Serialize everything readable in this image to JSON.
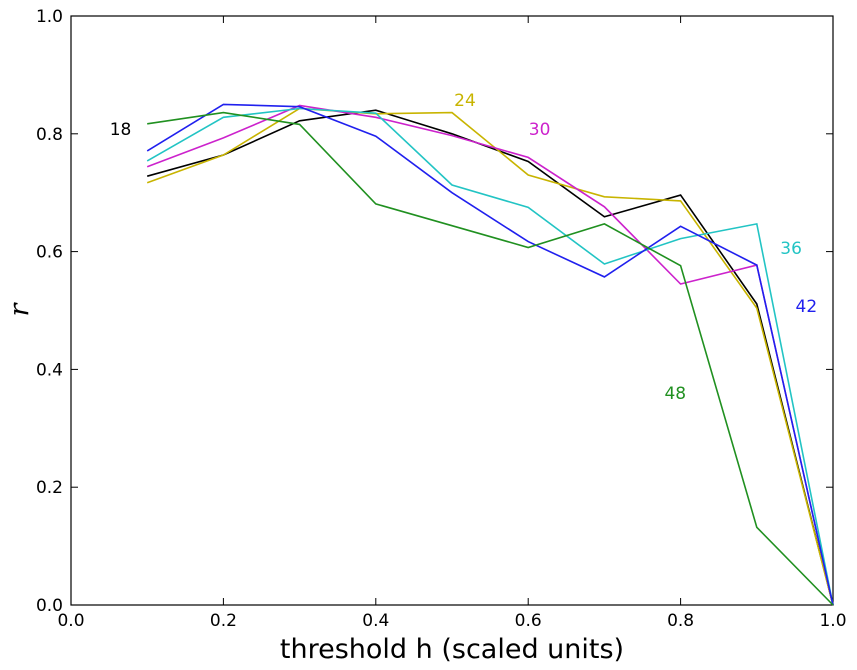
{
  "chart_data": {
    "type": "line",
    "title": "",
    "xlabel": "threshold h (scaled units)",
    "ylabel": "r",
    "xlim": [
      0.0,
      1.0
    ],
    "ylim": [
      0.0,
      1.0
    ],
    "grid": false,
    "legend": "none",
    "x_ticks": [
      "0.0",
      "0.2",
      "0.4",
      "0.6",
      "0.8",
      "1.0"
    ],
    "y_ticks": [
      "0.0",
      "0.2",
      "0.4",
      "0.6",
      "0.8",
      "1.0"
    ],
    "x": [
      0.1,
      0.2,
      0.3,
      0.4,
      0.5,
      0.6,
      0.7,
      0.8,
      0.9,
      1.0
    ],
    "series": [
      {
        "name": "18",
        "color": "#000000",
        "values": [
          0.728,
          0.764,
          0.822,
          0.84,
          0.8,
          0.753,
          0.659,
          0.696,
          0.511,
          0.0
        ]
      },
      {
        "name": "24",
        "color": "#c8b400",
        "values": [
          0.717,
          0.764,
          0.843,
          0.834,
          0.836,
          0.73,
          0.693,
          0.686,
          0.504,
          0.0
        ]
      },
      {
        "name": "30",
        "color": "#cc22cc",
        "values": [
          0.744,
          0.793,
          0.848,
          0.828,
          0.797,
          0.76,
          0.676,
          0.545,
          0.577,
          0.0
        ]
      },
      {
        "name": "36",
        "color": "#22c4c4",
        "values": [
          0.754,
          0.828,
          0.843,
          0.835,
          0.713,
          0.675,
          0.579,
          0.622,
          0.647,
          0.0
        ]
      },
      {
        "name": "42",
        "color": "#2020ee",
        "values": [
          0.771,
          0.85,
          0.846,
          0.796,
          0.7,
          0.617,
          0.557,
          0.643,
          0.577,
          0.0
        ]
      },
      {
        "name": "48",
        "color": "#209020",
        "values": [
          0.817,
          0.836,
          0.816,
          0.681,
          0.644,
          0.607,
          0.647,
          0.576,
          0.132,
          0.0
        ]
      }
    ],
    "annotations": [
      {
        "text": "18",
        "color": "#000000",
        "x": 0.065,
        "y": 0.808
      },
      {
        "text": "24",
        "color": "#c8b400",
        "x": 0.517,
        "y": 0.857
      },
      {
        "text": "30",
        "color": "#cc22cc",
        "x": 0.615,
        "y": 0.808
      },
      {
        "text": "36",
        "color": "#22c4c4",
        "x": 0.945,
        "y": 0.606
      },
      {
        "text": "42",
        "color": "#2020ee",
        "x": 0.965,
        "y": 0.508
      },
      {
        "text": "48",
        "color": "#209020",
        "x": 0.793,
        "y": 0.36
      }
    ]
  }
}
